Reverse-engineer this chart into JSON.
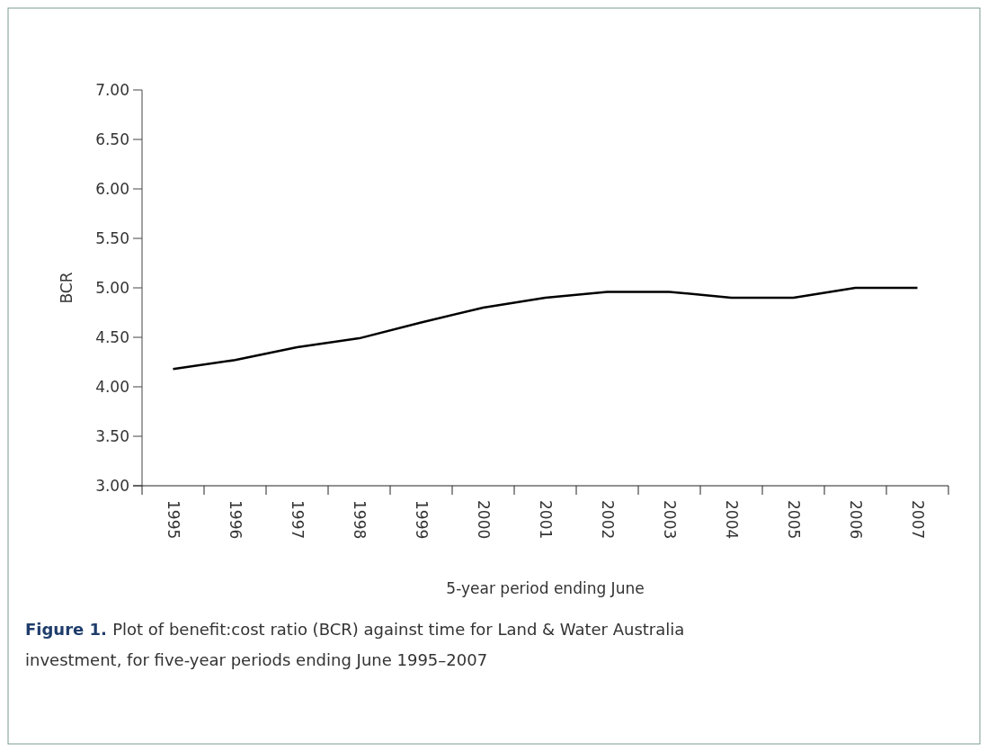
{
  "chart_data": {
    "type": "line",
    "ylabel": "BCR",
    "xlabel": "5-year period ending June",
    "categories": [
      "1995",
      "1996",
      "1997",
      "1998",
      "1999",
      "2000",
      "2001",
      "2002",
      "2003",
      "2004",
      "2005",
      "2006",
      "2007"
    ],
    "series": [
      {
        "color": "#000000",
        "values": [
          4.18,
          4.27,
          4.4,
          4.49,
          4.65,
          4.8,
          4.9,
          4.96,
          4.96,
          4.9,
          4.9,
          5.0,
          5.0
        ]
      }
    ],
    "ylim": [
      3,
      7
    ],
    "yticks": [
      {
        "value": 3,
        "label": "3.00"
      },
      {
        "value": 3.5,
        "label": "3.50"
      },
      {
        "value": 4,
        "label": "4.00"
      },
      {
        "value": 4.5,
        "label": "4.50"
      },
      {
        "value": 5,
        "label": "5.00"
      },
      {
        "value": 5.5,
        "label": "5.50"
      },
      {
        "value": 6,
        "label": "6.00"
      },
      {
        "value": 6.5,
        "label": "6.50"
      },
      {
        "value": 7,
        "label": "7.00"
      }
    ],
    "marker": "none",
    "line_style": "solid",
    "annotations": [
      "Figure 1.",
      "Plot of benefit:cost ratio (BCR) against time for Land & Water Australia investment, for five-year periods ending June 1995–2007"
    ]
  }
}
